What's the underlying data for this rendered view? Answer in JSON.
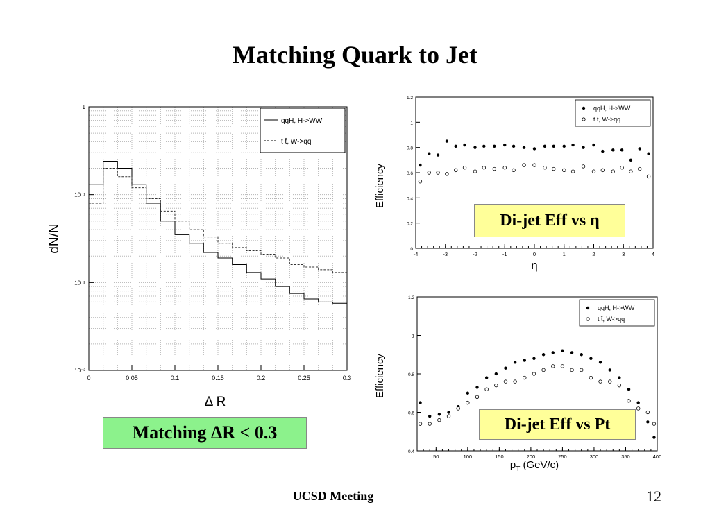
{
  "slide": {
    "title": "Matching Quark to Jet",
    "match_label": "Matching ΔR < 0.3",
    "eta_label": "Di-jet Eff vs η",
    "pt_label": "Di-jet Eff vs Pt",
    "footer": "UCSD Meeting",
    "page_number": "12"
  },
  "chart_data": [
    {
      "type": "line",
      "id": "dR",
      "title": "",
      "xlabel": "Δ R",
      "ylabel": "dN/N",
      "xlim": [
        0,
        0.3
      ],
      "ylim": [
        0.001,
        1
      ],
      "log_y": true,
      "grid": true,
      "legend_position": "top-right",
      "x_ticks": [
        "0",
        "0.05",
        "0.1",
        "0.15",
        "0.2",
        "0.25",
        "0.3"
      ],
      "y_ticks": [
        {
          "value": 1,
          "label": "1"
        },
        {
          "value": 0.1,
          "label": "10⁻¹"
        },
        {
          "value": 0.01,
          "label": "10⁻²"
        },
        {
          "value": 0.001,
          "label": "10⁻³"
        }
      ],
      "bin_edges": [
        0,
        0.0167,
        0.0333,
        0.05,
        0.0667,
        0.0833,
        0.1,
        0.1167,
        0.1333,
        0.15,
        0.1667,
        0.1833,
        0.2,
        0.2167,
        0.2333,
        0.25,
        0.2667,
        0.2833,
        0.3
      ],
      "series": [
        {
          "name": "qqH, H->WW",
          "style": "solid",
          "values": [
            0.13,
            0.24,
            0.2,
            0.13,
            0.08,
            0.05,
            0.035,
            0.028,
            0.022,
            0.019,
            0.016,
            0.013,
            0.011,
            0.009,
            0.0075,
            0.0065,
            0.006,
            0.0058
          ]
        },
        {
          "name": "t t̄, W->qq",
          "style": "dashed",
          "values": [
            0.08,
            0.2,
            0.16,
            0.12,
            0.09,
            0.065,
            0.05,
            0.04,
            0.033,
            0.028,
            0.025,
            0.023,
            0.021,
            0.019,
            0.016,
            0.015,
            0.014,
            0.013
          ]
        }
      ]
    },
    {
      "type": "scatter",
      "id": "eta",
      "title": "",
      "xlabel": "η",
      "ylabel": "Efficiency",
      "xlim": [
        -4,
        4
      ],
      "ylim": [
        0,
        1.2
      ],
      "grid": false,
      "legend_position": "top-right",
      "x_ticks": [
        -4,
        -3,
        -2,
        -1,
        0,
        1,
        2,
        3,
        4
      ],
      "y_ticks": [
        0,
        0.2,
        0.4,
        0.6,
        0.8,
        1,
        1.2
      ],
      "series": [
        {
          "name": "qqH, H->WW",
          "marker": "filled",
          "x": [
            -3.85,
            -3.55,
            -3.25,
            -2.95,
            -2.65,
            -2.35,
            -2.0,
            -1.7,
            -1.35,
            -1.0,
            -0.7,
            -0.35,
            0.0,
            0.35,
            0.65,
            1.0,
            1.3,
            1.65,
            2.0,
            2.3,
            2.65,
            2.95,
            3.25,
            3.55,
            3.85
          ],
          "y": [
            0.66,
            0.75,
            0.74,
            0.85,
            0.81,
            0.82,
            0.8,
            0.81,
            0.81,
            0.82,
            0.81,
            0.8,
            0.79,
            0.81,
            0.81,
            0.81,
            0.82,
            0.8,
            0.82,
            0.77,
            0.78,
            0.78,
            0.7,
            0.79,
            0.75
          ]
        },
        {
          "name": "t t̄, W->qq",
          "marker": "open",
          "x": [
            -3.85,
            -3.55,
            -3.25,
            -2.95,
            -2.65,
            -2.35,
            -2.0,
            -1.7,
            -1.35,
            -1.0,
            -0.7,
            -0.35,
            0.0,
            0.35,
            0.65,
            1.0,
            1.3,
            1.65,
            2.0,
            2.3,
            2.65,
            2.95,
            3.25,
            3.55,
            3.85
          ],
          "y": [
            0.53,
            0.6,
            0.6,
            0.59,
            0.62,
            0.64,
            0.61,
            0.64,
            0.63,
            0.64,
            0.62,
            0.66,
            0.66,
            0.64,
            0.63,
            0.62,
            0.61,
            0.65,
            0.61,
            0.62,
            0.61,
            0.64,
            0.61,
            0.63,
            0.57
          ]
        }
      ]
    },
    {
      "type": "scatter",
      "id": "pt",
      "title": "",
      "xlabel": "p_T (GeV/c)",
      "xlabel_main": "p",
      "xlabel_sub": "T",
      "xlabel_rest": " (GeV/c)",
      "ylabel": "Efficiency",
      "xlim": [
        20,
        400
      ],
      "ylim": [
        0.4,
        1.2
      ],
      "grid": false,
      "legend_position": "top-right",
      "x_ticks": [
        50,
        100,
        150,
        200,
        250,
        300,
        350,
        400
      ],
      "y_ticks": [
        0.4,
        0.6,
        0.8,
        1,
        1.2
      ],
      "series": [
        {
          "name": "qqH, H->WW",
          "marker": "filled",
          "x": [
            25,
            40,
            55,
            70,
            85,
            100,
            115,
            130,
            145,
            160,
            175,
            190,
            205,
            220,
            235,
            250,
            265,
            280,
            295,
            310,
            325,
            340,
            355,
            370,
            385,
            395
          ],
          "y": [
            0.65,
            0.58,
            0.59,
            0.6,
            0.63,
            0.7,
            0.73,
            0.78,
            0.8,
            0.83,
            0.86,
            0.87,
            0.88,
            0.9,
            0.91,
            0.92,
            0.91,
            0.9,
            0.88,
            0.86,
            0.82,
            0.78,
            0.72,
            0.65,
            0.55,
            0.47
          ]
        },
        {
          "name": "t t̄, W->qq",
          "marker": "open",
          "x": [
            25,
            40,
            55,
            70,
            85,
            100,
            115,
            130,
            145,
            160,
            175,
            190,
            205,
            220,
            235,
            250,
            265,
            280,
            295,
            310,
            325,
            340,
            355,
            370,
            385,
            395
          ],
          "y": [
            0.54,
            0.54,
            0.56,
            0.58,
            0.62,
            0.65,
            0.68,
            0.72,
            0.74,
            0.76,
            0.76,
            0.78,
            0.8,
            0.82,
            0.84,
            0.84,
            0.82,
            0.82,
            0.78,
            0.76,
            0.76,
            0.74,
            0.66,
            0.62,
            0.6,
            0.54
          ]
        }
      ]
    }
  ]
}
